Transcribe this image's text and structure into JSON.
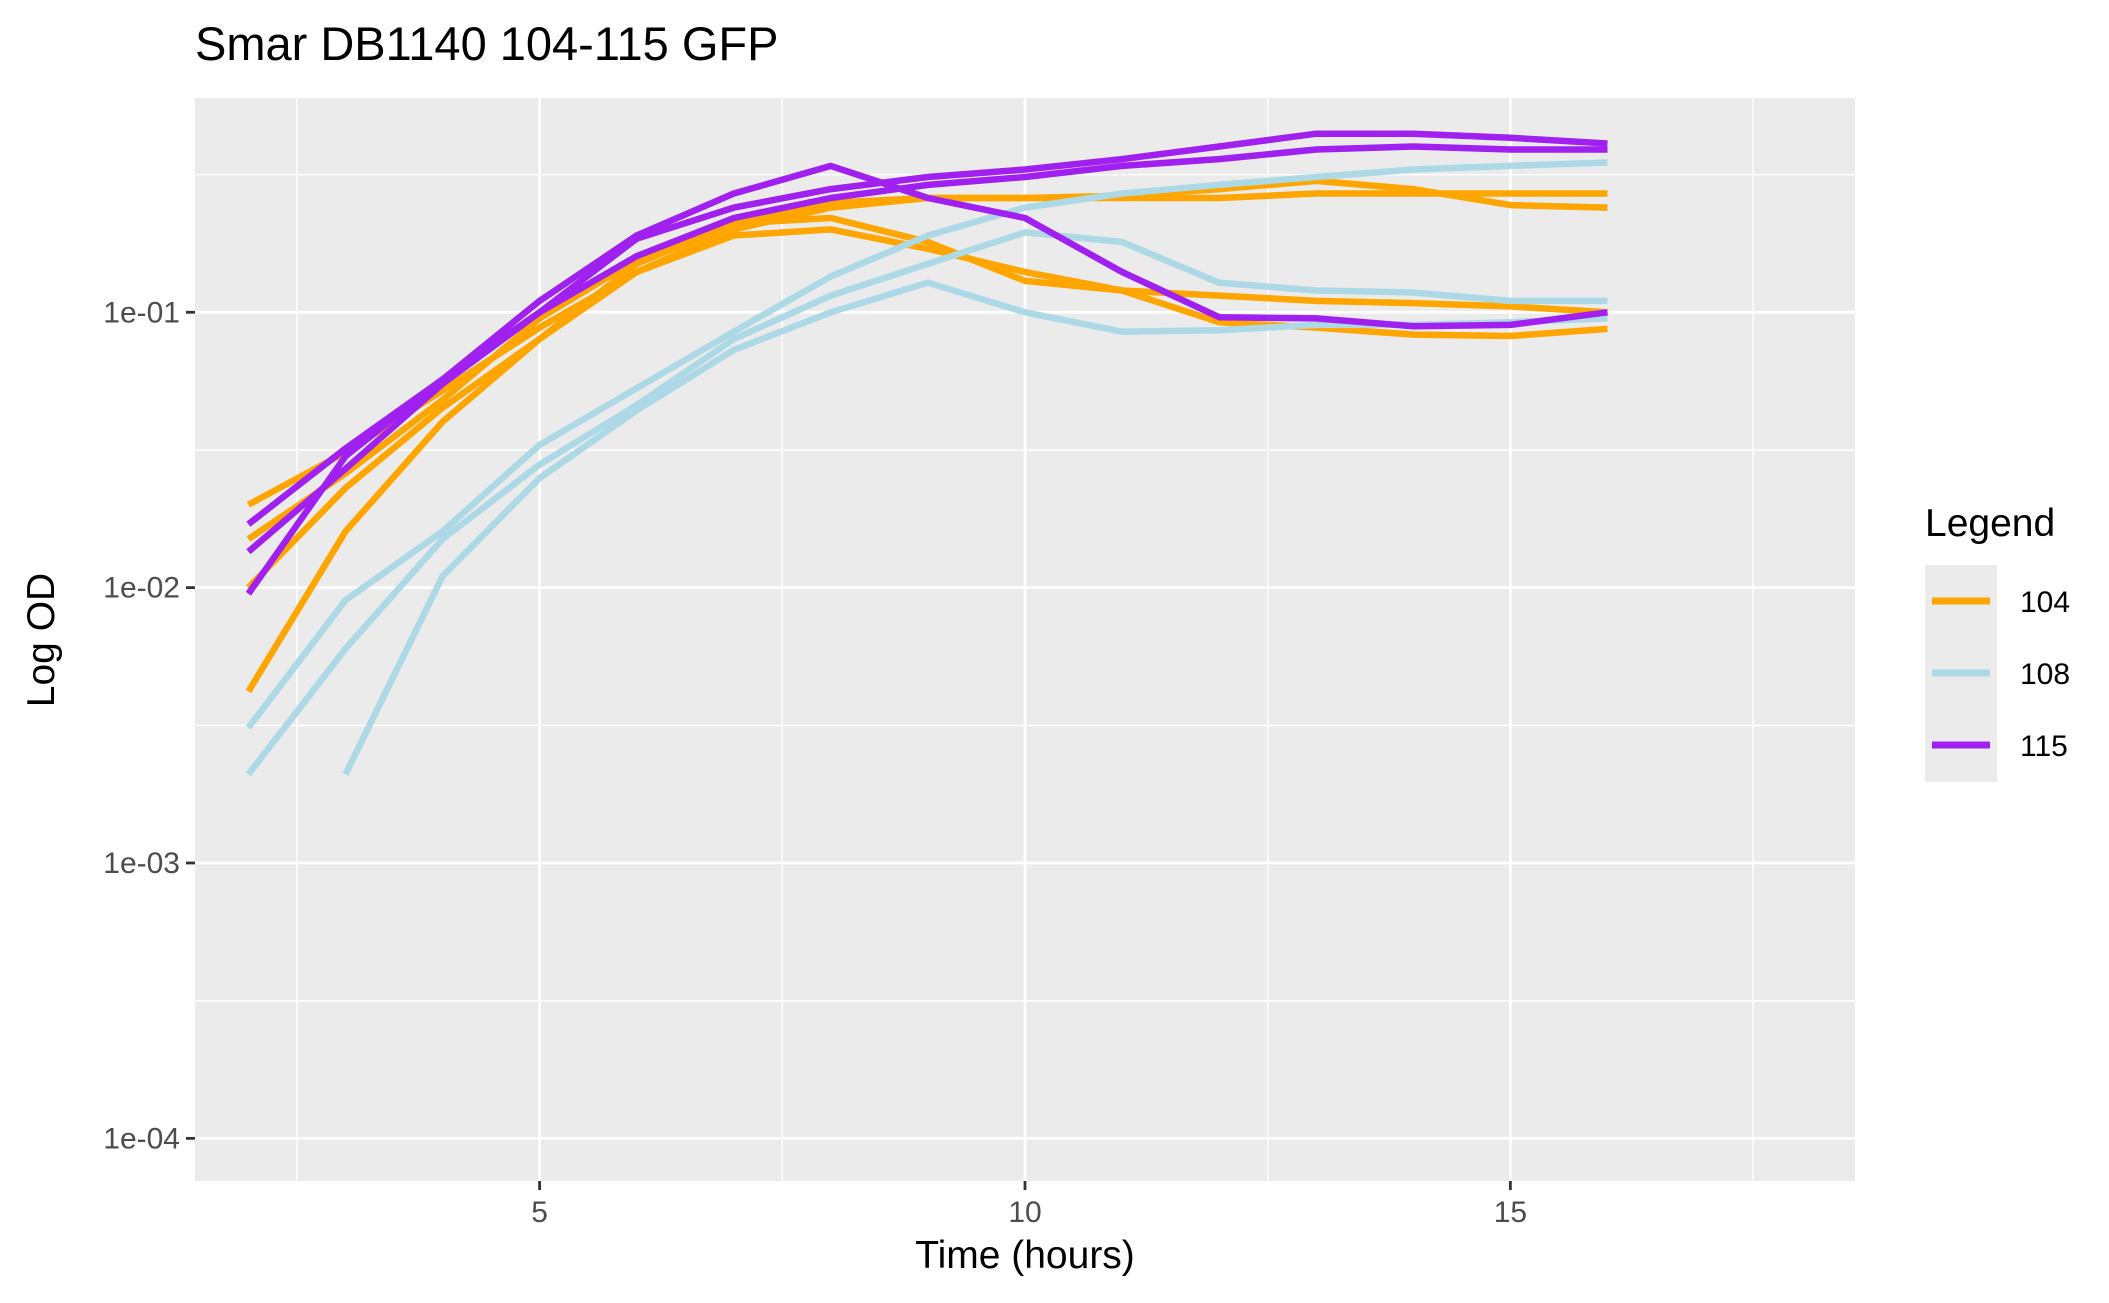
{
  "chart_data": {
    "type": "line",
    "title": "Smar DB1140 104-115 GFP",
    "xlabel": "Time (hours)",
    "ylabel": "Log OD",
    "x_scale": "linear",
    "y_scale": "log10",
    "xlim": [
      1.45,
      18.55
    ],
    "ylim": [
      7e-05,
      0.6
    ],
    "x_ticks": [
      {
        "value": 5,
        "label": "5"
      },
      {
        "value": 10,
        "label": "10"
      },
      {
        "value": 15,
        "label": "15"
      }
    ],
    "x_minor_ticks": [
      2.5,
      7.5,
      12.5,
      17.5
    ],
    "y_ticks": [
      {
        "value": 0.0001,
        "label": "1e-04"
      },
      {
        "value": 0.001,
        "label": "1e-03"
      },
      {
        "value": 0.01,
        "label": "1e-02"
      },
      {
        "value": 0.1,
        "label": "1e-01"
      }
    ],
    "y_minor_ticks": [
      0.000316,
      0.00316,
      0.0316,
      0.316
    ],
    "grid": true,
    "legend": {
      "title": "Legend",
      "position": "right",
      "entries": [
        {
          "label": "104",
          "color": "#FFA500"
        },
        {
          "label": "108",
          "color": "#ADD8E6"
        },
        {
          "label": "115",
          "color": "#A020F0"
        }
      ]
    },
    "series": [
      {
        "group": "104",
        "color": "#FFA500",
        "points": [
          [
            2,
            0.02
          ],
          [
            3,
            0.031
          ],
          [
            4,
            0.052
          ],
          [
            5,
            0.088
          ],
          [
            6,
            0.14
          ],
          [
            7,
            0.2
          ],
          [
            8,
            0.24
          ],
          [
            9,
            0.26
          ],
          [
            10,
            0.26
          ],
          [
            11,
            0.26
          ],
          [
            12,
            0.26
          ],
          [
            13,
            0.27
          ],
          [
            14,
            0.27
          ],
          [
            15,
            0.27
          ],
          [
            16,
            0.27
          ]
        ]
      },
      {
        "group": "104",
        "color": "#FFA500",
        "points": [
          [
            2,
            0.015
          ],
          [
            3,
            0.026
          ],
          [
            4,
            0.048
          ],
          [
            5,
            0.095
          ],
          [
            6,
            0.155
          ],
          [
            7,
            0.21
          ],
          [
            8,
            0.25
          ],
          [
            9,
            0.26
          ],
          [
            10,
            0.26
          ],
          [
            11,
            0.265
          ],
          [
            12,
            0.28
          ],
          [
            13,
            0.3
          ],
          [
            14,
            0.28
          ],
          [
            15,
            0.245
          ],
          [
            16,
            0.24
          ]
        ]
      },
      {
        "group": "104",
        "color": "#FFA500",
        "points": [
          [
            2,
            0.01
          ],
          [
            3,
            0.023
          ],
          [
            4,
            0.045
          ],
          [
            5,
            0.08
          ],
          [
            6,
            0.14
          ],
          [
            7,
            0.19
          ],
          [
            8,
            0.2
          ],
          [
            9,
            0.17
          ],
          [
            10,
            0.14
          ],
          [
            11,
            0.12
          ],
          [
            12,
            0.115
          ],
          [
            13,
            0.11
          ],
          [
            14,
            0.108
          ],
          [
            15,
            0.105
          ],
          [
            16,
            0.1
          ]
        ]
      },
      {
        "group": "104",
        "color": "#FFA500",
        "points": [
          [
            2,
            0.0042
          ],
          [
            3,
            0.016
          ],
          [
            4,
            0.04
          ],
          [
            5,
            0.08
          ],
          [
            6,
            0.15
          ],
          [
            7,
            0.21
          ],
          [
            8,
            0.22
          ],
          [
            9,
            0.18
          ],
          [
            10,
            0.13
          ],
          [
            11,
            0.12
          ],
          [
            12,
            0.092
          ],
          [
            13,
            0.088
          ],
          [
            14,
            0.083
          ],
          [
            15,
            0.082
          ],
          [
            16,
            0.087
          ]
        ]
      },
      {
        "group": "108",
        "color": "#ADD8E6",
        "points": [
          [
            2,
            0.0031
          ],
          [
            3,
            0.009
          ],
          [
            4,
            0.016
          ],
          [
            5,
            0.033
          ],
          [
            6,
            0.053
          ],
          [
            7,
            0.085
          ],
          [
            8,
            0.135
          ],
          [
            9,
            0.19
          ],
          [
            10,
            0.24
          ],
          [
            11,
            0.27
          ],
          [
            12,
            0.29
          ],
          [
            13,
            0.31
          ],
          [
            14,
            0.33
          ],
          [
            15,
            0.34
          ],
          [
            16,
            0.35
          ]
        ]
      },
      {
        "group": "108",
        "color": "#ADD8E6",
        "points": [
          [
            2,
            0.0021
          ],
          [
            3,
            0.006
          ],
          [
            4,
            0.015
          ],
          [
            5,
            0.028
          ],
          [
            6,
            0.046
          ],
          [
            7,
            0.08
          ],
          [
            8,
            0.115
          ],
          [
            9,
            0.15
          ],
          [
            10,
            0.195
          ],
          [
            11,
            0.18
          ],
          [
            12,
            0.128
          ],
          [
            13,
            0.12
          ],
          [
            14,
            0.118
          ],
          [
            15,
            0.11
          ],
          [
            16,
            0.11
          ]
        ]
      },
      {
        "group": "108",
        "color": "#ADD8E6",
        "points": [
          [
            3,
            0.0021
          ],
          [
            4,
            0.011
          ],
          [
            5,
            0.025
          ],
          [
            6,
            0.044
          ],
          [
            7,
            0.073
          ],
          [
            8,
            0.1
          ],
          [
            9,
            0.128
          ],
          [
            10,
            0.1
          ],
          [
            11,
            0.085
          ],
          [
            12,
            0.086
          ],
          [
            13,
            0.09
          ],
          [
            14,
            0.09
          ],
          [
            15,
            0.092
          ],
          [
            16,
            0.095
          ]
        ]
      },
      {
        "group": "115",
        "color": "#A020F0",
        "points": [
          [
            2,
            0.017
          ],
          [
            3,
            0.032
          ],
          [
            4,
            0.057
          ],
          [
            5,
            0.11
          ],
          [
            6,
            0.19
          ],
          [
            7,
            0.27
          ],
          [
            8,
            0.34
          ],
          [
            9,
            0.26
          ],
          [
            10,
            0.22
          ],
          [
            11,
            0.14
          ],
          [
            12,
            0.096
          ],
          [
            13,
            0.095
          ],
          [
            14,
            0.089
          ],
          [
            15,
            0.09
          ],
          [
            16,
            0.1
          ]
        ]
      },
      {
        "group": "115",
        "color": "#A020F0",
        "points": [
          [
            2,
            0.0095
          ],
          [
            3,
            0.03
          ],
          [
            4,
            0.057
          ],
          [
            5,
            0.1
          ],
          [
            6,
            0.185
          ],
          [
            7,
            0.24
          ],
          [
            8,
            0.28
          ],
          [
            9,
            0.31
          ],
          [
            10,
            0.33
          ],
          [
            11,
            0.36
          ],
          [
            12,
            0.4
          ],
          [
            13,
            0.445
          ],
          [
            14,
            0.445
          ],
          [
            15,
            0.43
          ],
          [
            16,
            0.41
          ]
        ]
      },
      {
        "group": "115",
        "color": "#A020F0",
        "points": [
          [
            2,
            0.0135
          ],
          [
            3,
            0.027
          ],
          [
            4,
            0.055
          ],
          [
            5,
            0.1
          ],
          [
            6,
            0.16
          ],
          [
            7,
            0.22
          ],
          [
            8,
            0.26
          ],
          [
            9,
            0.29
          ],
          [
            10,
            0.31
          ],
          [
            11,
            0.34
          ],
          [
            12,
            0.36
          ],
          [
            13,
            0.39
          ],
          [
            14,
            0.4
          ],
          [
            15,
            0.39
          ],
          [
            16,
            0.39
          ]
        ]
      }
    ]
  }
}
